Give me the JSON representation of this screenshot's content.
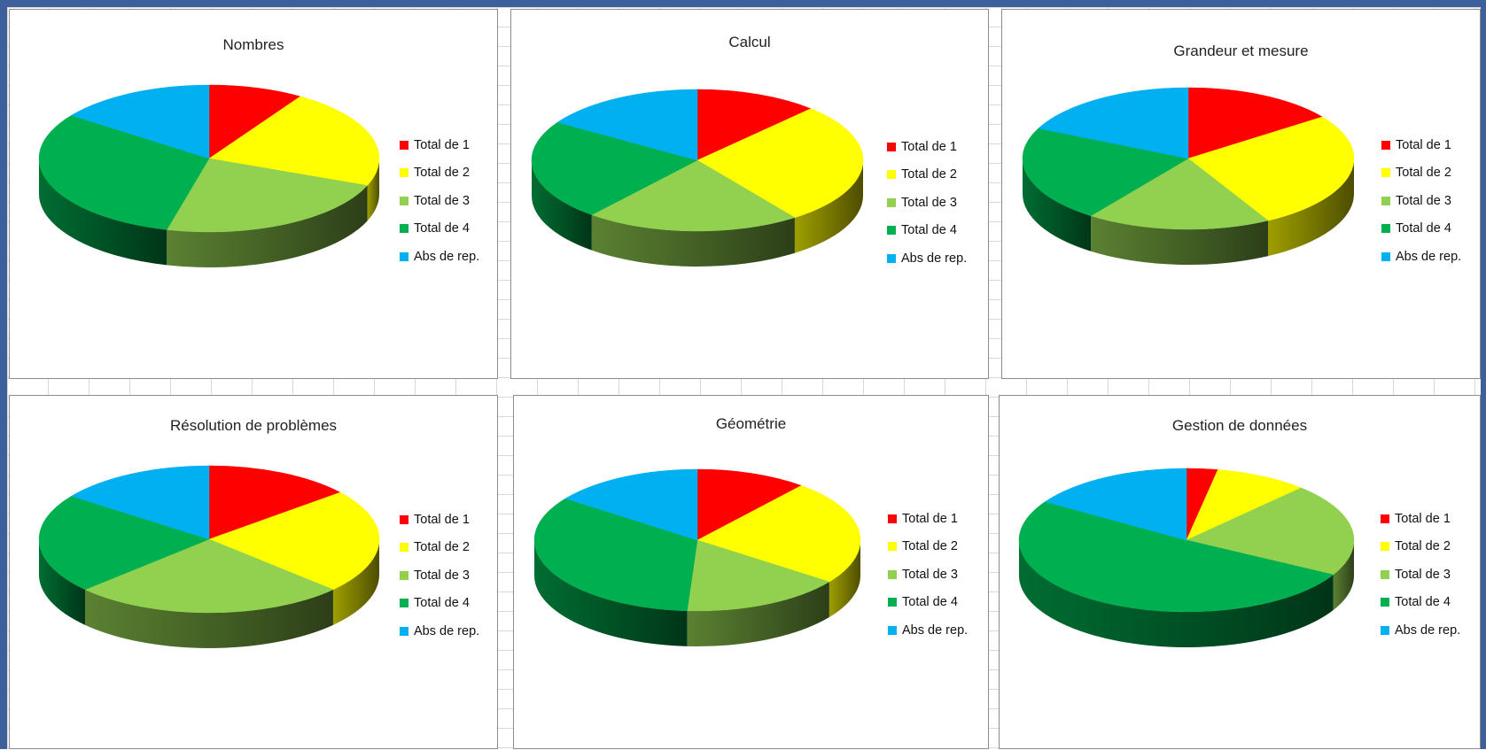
{
  "colors": {
    "total1": "#ff0000",
    "total2": "#ffff00",
    "total3": "#92d050",
    "total4": "#00b050",
    "abs": "#00b0f0"
  },
  "chart_data": [
    {
      "type": "pie",
      "title": "Nombres",
      "categories": [
        "Total de 1",
        "Total de 2",
        "Total de 3",
        "Total de 4",
        "Abs de rep."
      ],
      "values": [
        9,
        22,
        23,
        31,
        15
      ]
    },
    {
      "type": "pie",
      "title": "Calcul",
      "categories": [
        "Total de 1",
        "Total de 2",
        "Total de 3",
        "Total de 4",
        "Abs de rep."
      ],
      "values": [
        12,
        28,
        21,
        23,
        16
      ]
    },
    {
      "type": "pie",
      "title": "Grandeur et mesure",
      "categories": [
        "Total de 1",
        "Total de 2",
        "Total de 3",
        "Total de 4",
        "Abs de rep."
      ],
      "values": [
        15,
        27,
        18,
        22,
        18
      ]
    },
    {
      "type": "pie",
      "title": "Résolution de problèmes",
      "categories": [
        "Total de 1",
        "Total de 2",
        "Total de 3",
        "Total de 4",
        "Abs de rep."
      ],
      "values": [
        14,
        23,
        26,
        22,
        15
      ]
    },
    {
      "type": "pie",
      "title": "Géométrie",
      "categories": [
        "Total de 1",
        "Total de 2",
        "Total de 3",
        "Total de 4",
        "Abs de rep."
      ],
      "values": [
        11,
        24,
        16,
        34,
        15
      ]
    },
    {
      "type": "pie",
      "title": "Gestion de données",
      "categories": [
        "Total de 1",
        "Total de 2",
        "Total de 3",
        "Total de 4",
        "Abs de rep."
      ],
      "values": [
        3,
        9,
        21,
        51,
        16
      ]
    }
  ],
  "legend_labels": [
    "Total de 1",
    "Total de 2",
    "Total de 3",
    "Total de 4",
    "Abs de rep."
  ]
}
